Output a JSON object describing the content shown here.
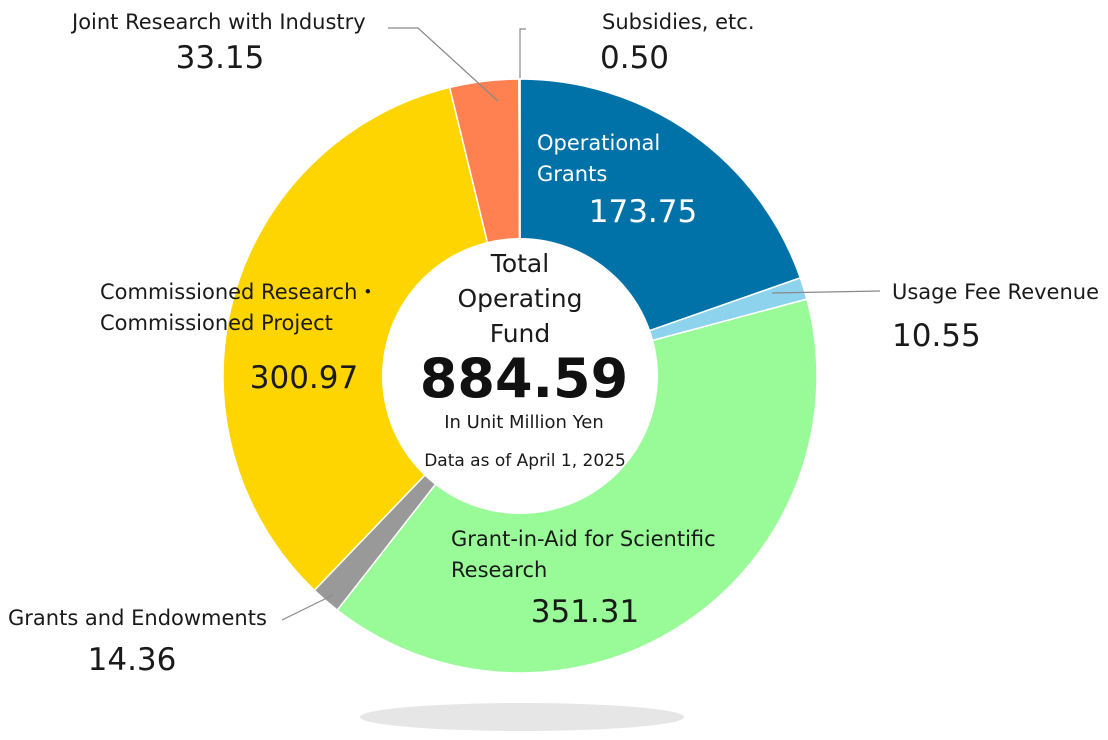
{
  "chart_data": {
    "type": "pie",
    "style": "donut",
    "center": {
      "title_lines": [
        "Total",
        "Operating",
        "Fund"
      ],
      "total": "884.59",
      "unit": "In Unit Million Yen",
      "date_note": "Data as of April 1, 2025"
    },
    "slices": [
      {
        "key": "operational_grants",
        "label_lines": [
          "Operational",
          "Grants"
        ],
        "value": 173.75,
        "value_text": "173.75",
        "color": "#0072A8",
        "label_color": "#ffffff"
      },
      {
        "key": "usage_fee_revenue",
        "label_lines": [
          "Usage Fee Revenue"
        ],
        "value": 10.55,
        "value_text": "10.55",
        "color": "#8ED3EE",
        "label_color": "#1a1a1a"
      },
      {
        "key": "grant_in_aid",
        "label_lines": [
          "Grant-in-Aid for Scientific",
          "Research"
        ],
        "value": 351.31,
        "value_text": "351.31",
        "color": "#98FB98",
        "label_color": "#1a1a1a"
      },
      {
        "key": "grants_and_endowments",
        "label_lines": [
          "Grants and Endowments"
        ],
        "value": 14.36,
        "value_text": "14.36",
        "color": "#999999",
        "label_color": "#1a1a1a"
      },
      {
        "key": "commissioned_research",
        "label_lines": [
          "Commissioned Research・",
          "Commissioned Project"
        ],
        "value": 300.97,
        "value_text": "300.97",
        "color": "#FFD500",
        "label_color": "#1a1a1a"
      },
      {
        "key": "joint_research_industry",
        "label_lines": [
          "Joint Research with Industry"
        ],
        "value": 33.15,
        "value_text": "33.15",
        "color": "#FF8050",
        "label_color": "#1a1a1a"
      },
      {
        "key": "subsidies",
        "label_lines": [
          "Subsidies, etc."
        ],
        "value": 0.5,
        "value_text": "0.50",
        "color": "#d0d0d0",
        "label_color": "#1a1a1a"
      }
    ]
  }
}
